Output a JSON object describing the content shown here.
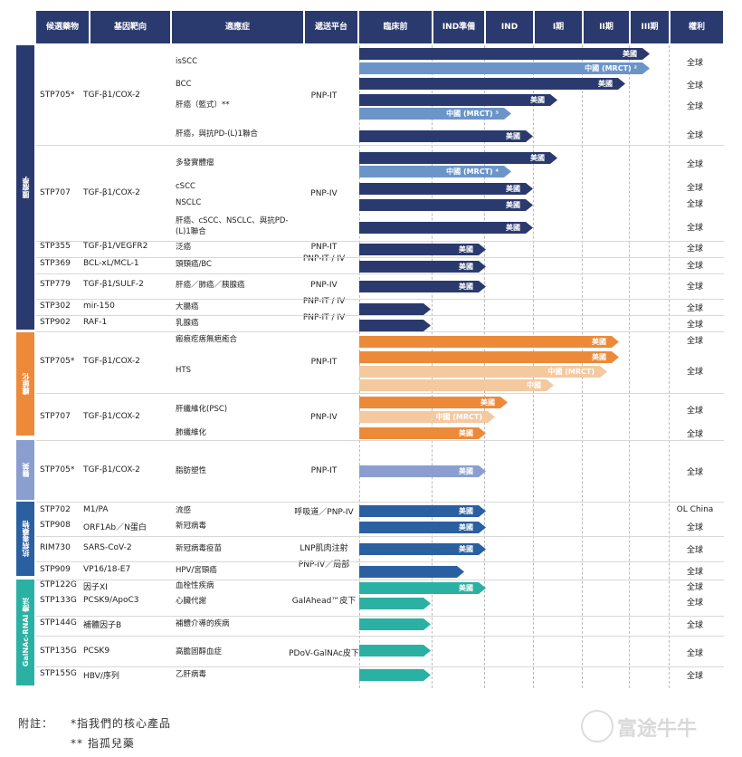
{
  "headers": {
    "candidate": "候選藥物",
    "target": "基因靶向",
    "indication": "適應症",
    "platform": "遞送平台",
    "preclinical": "臨床前",
    "ind_prep": "IND準備",
    "ind": "IND",
    "phase1": "I期",
    "phase2": "II期",
    "phase3": "III期",
    "rights": "權利"
  },
  "categories": [
    {
      "label": "腫瘤學",
      "color": "#2b3a6e"
    },
    {
      "label": "纖維化",
      "color": "#ec8a3a"
    },
    {
      "label": "醫美",
      "color": "#8a9ed0"
    },
    {
      "label": "抗病毒藥物",
      "color": "#2a5fa0"
    },
    {
      "label": "GalNAc-RNAi 療法",
      "color": "#2bb0a4"
    }
  ],
  "drugs": [
    {
      "name": "STP705*",
      "target": "TGF-β1/COX-2",
      "platform": "PNP-IT"
    },
    {
      "name": "STP707",
      "target": "TGF-β1/COX-2",
      "platform": "PNP-IV"
    },
    {
      "name": "STP355",
      "target": "TGF-β1/VEGFR2",
      "platform": "PNP-IT"
    },
    {
      "name": "STP369",
      "target": "BCL-xL/MCL-1",
      "platform": "PNP-IT / IV"
    },
    {
      "name": "STP779",
      "target": "TGF-β1/SULF-2",
      "platform": "PNP-IV"
    },
    {
      "name": "STP302",
      "target": "mir-150",
      "platform": "PNP-IT / IV"
    },
    {
      "name": "STP902",
      "target": "RAF-1",
      "platform": "PNP-IT / IV"
    },
    {
      "name": "STP705*",
      "target": "TGF-β1/COX-2",
      "platform": "PNP-IT"
    },
    {
      "name": "STP707",
      "target": "TGF-β1/COX-2",
      "platform": "PNP-IV"
    },
    {
      "name": "STP705*",
      "target": "TGF-β1/COX-2",
      "platform": "PNP-IT"
    },
    {
      "name": "STP702",
      "target": "M1/PA",
      "platform": "呼吸道／PNP-IV"
    },
    {
      "name": "STP908",
      "target": "ORF1Ab／N蛋白",
      "platform": ""
    },
    {
      "name": "RIM730",
      "target": "SARS-CoV-2",
      "platform": "LNP肌肉注射"
    },
    {
      "name": "STP909",
      "target": "VP16/18-E7",
      "platform": "PNP-IV／局部"
    },
    {
      "name": "STP122G",
      "target": "因子XI",
      "platform": ""
    },
    {
      "name": "STP133G",
      "target": "PCSK9/ApoC3",
      "platform": "GalAhead™皮下"
    },
    {
      "name": "STP144G",
      "target": "補體因子B",
      "platform": ""
    },
    {
      "name": "STP135G",
      "target": "PCSK9",
      "platform": "PDoV-GalNAc皮下"
    },
    {
      "name": "STP155G",
      "target": "HBV/序列",
      "platform": ""
    }
  ],
  "indications": [
    {
      "label": "isSCC",
      "rights": "全球"
    },
    {
      "label": "BCC",
      "rights": "全球"
    },
    {
      "label": "肝癌（籃式）**",
      "rights": "全球"
    },
    {
      "label": "肝癌，與抗PD-(L)1聯合",
      "rights": "全球"
    },
    {
      "label": "多發實體瘤",
      "rights": "全球"
    },
    {
      "label": "cSCC",
      "rights": "全球"
    },
    {
      "label": "NSCLC",
      "rights": "全球"
    },
    {
      "label": "肝癌、cSCC、NSCLC、與抗PD-(L)1聯合",
      "rights": "全球"
    },
    {
      "label": "泛癌",
      "rights": "全球"
    },
    {
      "label": "頭頸癌/BC",
      "rights": "全球"
    },
    {
      "label": "肝癌／肺癌／胰腺癌",
      "rights": "全球"
    },
    {
      "label": "大腸癌",
      "rights": "全球"
    },
    {
      "label": "乳腺癌",
      "rights": "全球"
    },
    {
      "label": "瘢痕疙瘩無疤癒合",
      "rights": "全球"
    },
    {
      "label": "HTS",
      "rights": "全球"
    },
    {
      "label": "肝纖維化(PSC)",
      "rights": "全球"
    },
    {
      "label": "肺纖維化",
      "rights": "全球"
    },
    {
      "label": "脂肪塑性",
      "rights": "全球"
    },
    {
      "label": "流感",
      "rights": "OL China"
    },
    {
      "label": "新冠病毒",
      "rights": "全球"
    },
    {
      "label": "新冠病毒疫苗",
      "rights": "全球"
    },
    {
      "label": "HPV/宮頸癌",
      "rights": "全球"
    },
    {
      "label": "血栓性疾病",
      "rights": "全球"
    },
    {
      "label": "心臟代謝",
      "rights": "全球"
    },
    {
      "label": "補體介導的疾病",
      "rights": "全球"
    },
    {
      "label": "高膽固醇血症",
      "rights": "全球"
    },
    {
      "label": "乙肝病毒",
      "rights": "全球"
    }
  ],
  "bars": [
    {
      "label": "美國",
      "stage": 0.94,
      "color": "#2b3a6e"
    },
    {
      "label": "中國 (MRCT) ²",
      "stage": 0.94,
      "color": "#6b95c9"
    },
    {
      "label": "美國",
      "stage": 0.86,
      "color": "#2b3a6e"
    },
    {
      "label": "美國",
      "stage": 0.64,
      "color": "#2b3a6e"
    },
    {
      "label": "中國 (MRCT) ³",
      "stage": 0.49,
      "color": "#6b95c9"
    },
    {
      "label": "美國",
      "stage": 0.56,
      "color": "#2b3a6e"
    },
    {
      "label": "美國",
      "stage": 0.64,
      "color": "#2b3a6e"
    },
    {
      "label": "中國 (MRCT) ⁴",
      "stage": 0.49,
      "color": "#6b95c9"
    },
    {
      "label": "美國",
      "stage": 0.56,
      "color": "#2b3a6e"
    },
    {
      "label": "美國",
      "stage": 0.56,
      "color": "#2b3a6e"
    },
    {
      "label": "美國",
      "stage": 0.56,
      "color": "#2b3a6e"
    },
    {
      "label": "美國",
      "stage": 0.41,
      "color": "#2b3a6e"
    },
    {
      "label": "美國",
      "stage": 0.41,
      "color": "#2b3a6e"
    },
    {
      "label": "美國",
      "stage": 0.41,
      "color": "#2b3a6e"
    },
    {
      "label": "",
      "stage": 0.23,
      "color": "#2b3a6e"
    },
    {
      "label": "",
      "stage": 0.23,
      "color": "#2b3a6e"
    },
    {
      "label": "美國",
      "stage": 0.84,
      "color": "#ec8a3a"
    },
    {
      "label": "美國",
      "stage": 0.84,
      "color": "#ec8a3a"
    },
    {
      "label": "中國 (MRCT)",
      "stage": 0.8,
      "color": "#f5c9a0"
    },
    {
      "label": "中國",
      "stage": 0.63,
      "color": "#f5c9a0"
    },
    {
      "label": "美國",
      "stage": 0.48,
      "color": "#ec8a3a"
    },
    {
      "label": "中國 (MRCT)",
      "stage": 0.44,
      "color": "#f5c9a0"
    },
    {
      "label": "美國",
      "stage": 0.41,
      "color": "#ec8a3a"
    },
    {
      "label": "美國",
      "stage": 0.41,
      "color": "#8a9ed0"
    },
    {
      "label": "美國",
      "stage": 0.41,
      "color": "#2a5fa0"
    },
    {
      "label": "美國",
      "stage": 0.41,
      "color": "#2a5fa0"
    },
    {
      "label": "美國",
      "stage": 0.41,
      "color": "#2a5fa0"
    },
    {
      "label": "",
      "stage": 0.34,
      "color": "#2a5fa0"
    },
    {
      "label": "美國",
      "stage": 0.41,
      "color": "#2bb0a4"
    },
    {
      "label": "",
      "stage": 0.23,
      "color": "#2bb0a4"
    },
    {
      "label": "",
      "stage": 0.23,
      "color": "#2bb0a4"
    },
    {
      "label": "",
      "stage": 0.23,
      "color": "#2bb0a4"
    },
    {
      "label": "",
      "stage": 0.23,
      "color": "#2bb0a4"
    }
  ],
  "footnote": {
    "prefix": "附註：",
    "line1": "*指我們的核心產品",
    "line2": "** 指孤兒藥"
  },
  "watermark": "富途牛牛"
}
